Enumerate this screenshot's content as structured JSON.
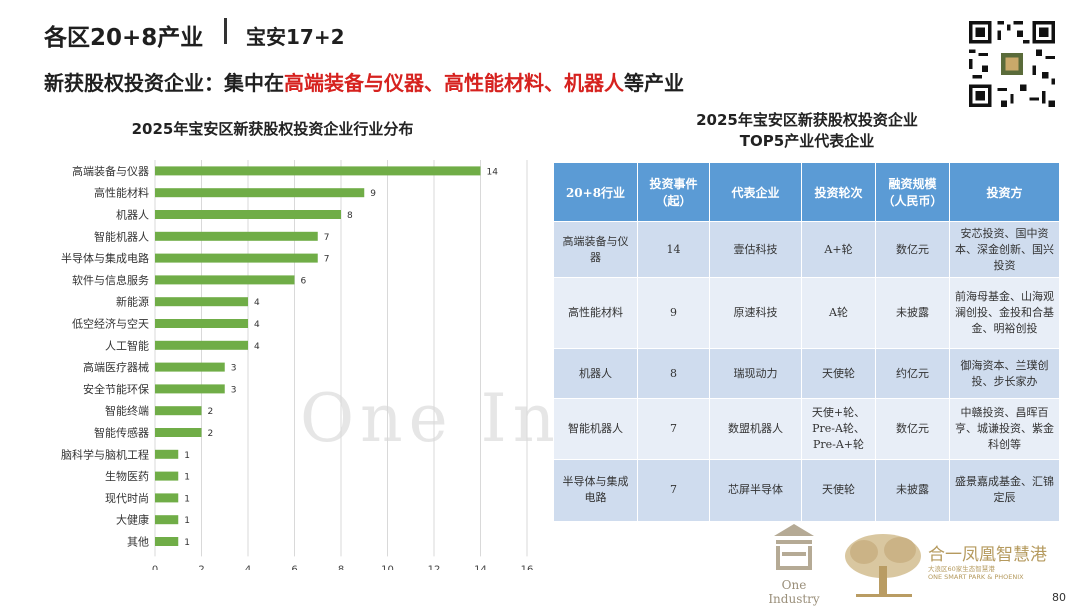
{
  "header": {
    "title": "各区20+8产业",
    "subtitle": "宝安17+2"
  },
  "headline": {
    "prefix": "新获股权投资企业：集中在",
    "highlight": "高端装备与仪器、高性能材料、机器人",
    "suffix": "等产业"
  },
  "chart_data": {
    "type": "bar",
    "orientation": "horizontal",
    "title": "2025年宝安区新获股权投资企业行业分布",
    "categories": [
      "高端装备与仪器",
      "高性能材料",
      "机器人",
      "智能机器人",
      "半导体与集成电路",
      "软件与信息服务",
      "新能源",
      "低空经济与空天",
      "人工智能",
      "高端医疗器械",
      "安全节能环保",
      "智能终端",
      "智能传感器",
      "脑科学与脑机工程",
      "生物医药",
      "现代时尚",
      "大健康",
      "其他"
    ],
    "values": [
      14,
      9,
      8,
      7,
      7,
      6,
      4,
      4,
      4,
      3,
      3,
      2,
      2,
      1,
      1,
      1,
      1,
      1
    ],
    "xlim": [
      0,
      16
    ],
    "xticks": [
      0,
      2,
      4,
      6,
      8,
      10,
      12,
      14,
      16
    ],
    "bar_color": "#70ad47",
    "grid": true
  },
  "table": {
    "title_line1": "2025年宝安区新获股权投资企业",
    "title_line2": "TOP5产业代表企业",
    "headers": [
      "20+8行业",
      "投资事件（起）",
      "代表企业",
      "投资轮次",
      "融资规模（人民币）",
      "投资方"
    ],
    "rows": [
      [
        "高端装备与仪器",
        "14",
        "壹估科技",
        "A+轮",
        "数亿元",
        "安芯投资、国中资本、深金创新、国兴投资"
      ],
      [
        "高性能材料",
        "9",
        "原速科技",
        "A轮",
        "未披露",
        "前海母基金、山海观澜创投、金投和合基金、明裕创投"
      ],
      [
        "机器人",
        "8",
        "瑞现动力",
        "天使轮",
        "约亿元",
        "御海资本、兰璞创投、步长家办"
      ],
      [
        "智能机器人",
        "7",
        "数盟机器人",
        "天使+轮、Pre-A轮、Pre-A+轮",
        "数亿元",
        "中赣投资、昌晖百亨、城谦投资、紫金科创等"
      ],
      [
        "半导体与集成电路",
        "7",
        "芯屏半导体",
        "天使轮",
        "未披露",
        "盛景嘉成基金、汇锦定辰"
      ]
    ]
  },
  "watermark": "One Industry",
  "logos": {
    "left_text": "One Industry",
    "right_main": "合一凤凰智慧港",
    "right_small1": "大浪区60家生态智慧港",
    "right_small2": "ONE SMART PARK & PHOENIX"
  },
  "page_number": "80"
}
